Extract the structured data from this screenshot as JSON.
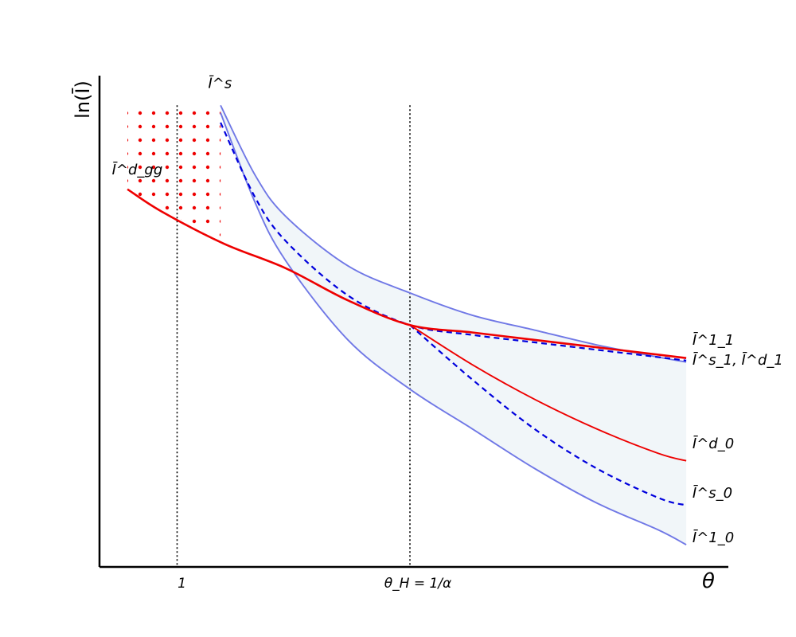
{
  "chart_data": {
    "type": "line",
    "title": "",
    "xlabel": "θ",
    "ylabel": "ln(Ī)",
    "xlim": [
      0,
      1
    ],
    "ylim": [
      0,
      1
    ],
    "x_ticks": [
      {
        "value": 0.125,
        "label": "1"
      },
      {
        "value": 0.5,
        "label": "θ_H = 1/α"
      }
    ],
    "grid": false,
    "legend": "none",
    "shaded_band": {
      "between": [
        "Ī_1^1",
        "Ī_0^1"
      ],
      "x_range": [
        0.195,
        0.945
      ]
    },
    "dotted_region": {
      "x_range": [
        0.045,
        0.195
      ],
      "y_top": 0.935
    },
    "series": [
      {
        "name": "Ī_1^1",
        "style": "solid",
        "color": "#7078e6",
        "x": [
          0.195,
          0.25,
          0.3,
          0.4,
          0.5,
          0.6,
          0.7,
          0.8,
          0.9,
          0.945
        ],
        "y": [
          0.935,
          0.795,
          0.71,
          0.61,
          0.555,
          0.51,
          0.48,
          0.45,
          0.425,
          0.415
        ]
      },
      {
        "name": "Ī_0^1",
        "style": "solid",
        "color": "#7078e6",
        "x": [
          0.195,
          0.25,
          0.3,
          0.4,
          0.5,
          0.6,
          0.7,
          0.8,
          0.9,
          0.945
        ],
        "y": [
          0.92,
          0.74,
          0.62,
          0.46,
          0.36,
          0.28,
          0.2,
          0.13,
          0.075,
          0.045
        ]
      },
      {
        "name": "Ī_1^s, Ī_1^d (s)",
        "style": "dashed",
        "color": "#0000dd",
        "x": [
          0.195,
          0.25,
          0.3,
          0.4,
          0.5,
          0.6,
          0.7,
          0.8,
          0.9,
          0.945
        ],
        "y": [
          0.9,
          0.75,
          0.66,
          0.55,
          0.49,
          0.47,
          0.455,
          0.44,
          0.425,
          0.418
        ]
      },
      {
        "name": "Ī_0^s",
        "style": "dashed",
        "color": "#0000dd",
        "x": [
          0.5,
          0.6,
          0.7,
          0.8,
          0.9,
          0.945
        ],
        "y": [
          0.49,
          0.38,
          0.28,
          0.2,
          0.14,
          0.125
        ]
      },
      {
        "name": "Ī_1^d",
        "style": "solid",
        "color": "#ee0000",
        "bold": true,
        "x": [
          0.045,
          0.1,
          0.2,
          0.3,
          0.4,
          0.5,
          0.6,
          0.7,
          0.8,
          0.9,
          0.945
        ],
        "y": [
          0.765,
          0.72,
          0.655,
          0.605,
          0.54,
          0.49,
          0.475,
          0.46,
          0.445,
          0.43,
          0.423
        ]
      },
      {
        "name": "Ī_0^d",
        "style": "solid",
        "color": "#ee0000",
        "x": [
          0.5,
          0.6,
          0.7,
          0.8,
          0.9,
          0.945
        ],
        "y": [
          0.49,
          0.41,
          0.34,
          0.28,
          0.23,
          0.215
        ]
      }
    ],
    "annotations": [
      {
        "text": "Ī^s",
        "x": 0.175,
        "y": 0.97
      },
      {
        "text": "Ī^d_gg",
        "x": 0.02,
        "y": 0.795
      },
      {
        "text": "Ī^1_1",
        "x": 0.955,
        "y": 0.45
      },
      {
        "text": "Ī^s_1, Ī^d_1",
        "x": 0.955,
        "y": 0.41
      },
      {
        "text": "Ī^d_0",
        "x": 0.955,
        "y": 0.24
      },
      {
        "text": "Ī^s_0",
        "x": 0.955,
        "y": 0.14
      },
      {
        "text": "Ī^1_0",
        "x": 0.955,
        "y": 0.05
      }
    ]
  },
  "axes": {
    "x_label": "θ",
    "y_label": "ln(Ī)"
  }
}
